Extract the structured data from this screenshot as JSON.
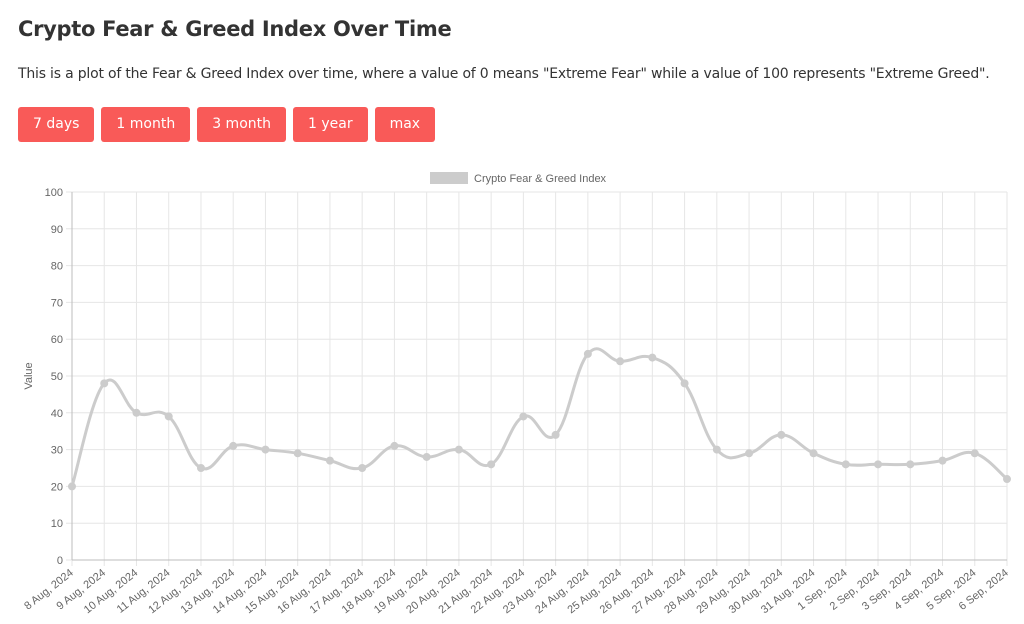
{
  "page": {
    "title": "Crypto Fear & Greed Index Over Time",
    "description": "This is a plot of the Fear & Greed Index over time, where a value of 0 means \"Extreme Fear\" while a value of 100 represents \"Extreme Greed\"."
  },
  "range_buttons": [
    {
      "label": "7 days"
    },
    {
      "label": "1 month"
    },
    {
      "label": "3 month"
    },
    {
      "label": "1 year"
    },
    {
      "label": "max"
    }
  ],
  "chart_data": {
    "type": "line",
    "title": "",
    "xlabel": "",
    "ylabel": "Value",
    "ylim": [
      0,
      100
    ],
    "yticks": [
      0,
      10,
      20,
      30,
      40,
      50,
      60,
      70,
      80,
      90,
      100
    ],
    "grid": true,
    "legend_position": "top",
    "categories": [
      "8 Aug, 2024",
      "9 Aug, 2024",
      "10 Aug, 2024",
      "11 Aug, 2024",
      "12 Aug, 2024",
      "13 Aug, 2024",
      "14 Aug, 2024",
      "15 Aug, 2024",
      "16 Aug, 2024",
      "17 Aug, 2024",
      "18 Aug, 2024",
      "19 Aug, 2024",
      "20 Aug, 2024",
      "21 Aug, 2024",
      "22 Aug, 2024",
      "23 Aug, 2024",
      "24 Aug, 2024",
      "25 Aug, 2024",
      "26 Aug, 2024",
      "27 Aug, 2024",
      "28 Aug, 2024",
      "29 Aug, 2024",
      "30 Aug, 2024",
      "31 Aug, 2024",
      "1 Sep, 2024",
      "2 Sep, 2024",
      "3 Sep, 2024",
      "4 Sep, 2024",
      "5 Sep, 2024",
      "6 Sep, 2024"
    ],
    "series": [
      {
        "name": "Crypto Fear & Greed Index",
        "color": "#cccccc",
        "values": [
          20,
          48,
          40,
          39,
          25,
          31,
          30,
          29,
          27,
          25,
          31,
          28,
          30,
          26,
          39,
          34,
          56,
          54,
          55,
          48,
          30,
          29,
          34,
          29,
          26,
          26,
          26,
          27,
          29,
          22
        ]
      }
    ]
  }
}
